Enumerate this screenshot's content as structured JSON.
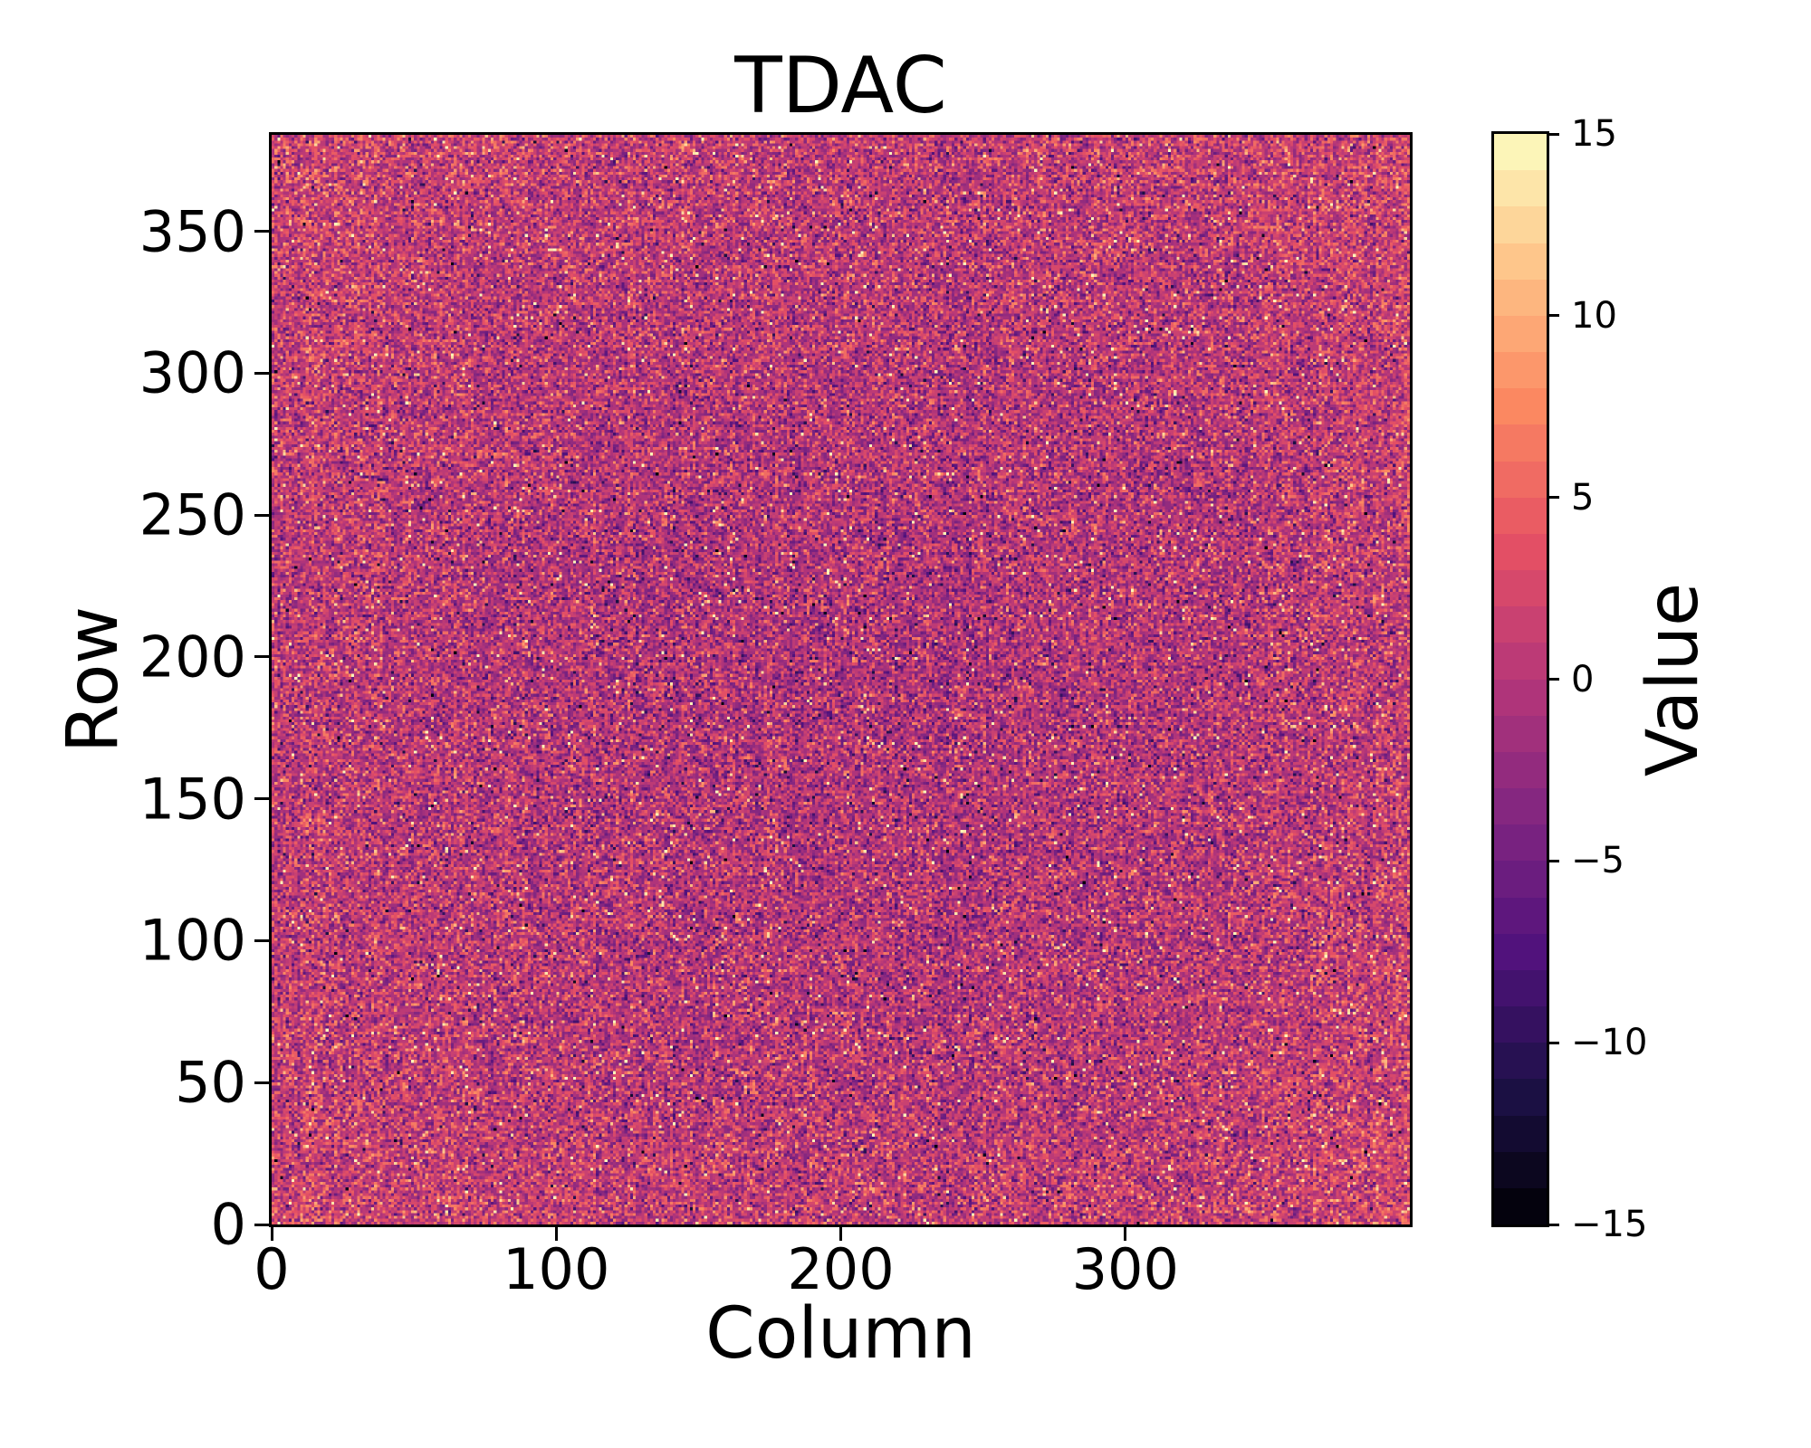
{
  "chart_data": {
    "type": "heatmap",
    "title": "TDAC",
    "xlabel": "Column",
    "ylabel": "Row",
    "colorbar_label": "Value",
    "n_cols": 400,
    "n_rows": 384,
    "xlim": [
      0,
      400
    ],
    "ylim": [
      0,
      384
    ],
    "x_ticks": [
      0,
      100,
      200,
      300
    ],
    "y_ticks": [
      0,
      50,
      100,
      150,
      200,
      250,
      300,
      350
    ],
    "vmin": -15,
    "vmax": 15,
    "colorbar_ticks": [
      15,
      10,
      5,
      0,
      -5,
      -10,
      -15
    ],
    "colorbar_n_bins": 30,
    "colormap": "magma",
    "colormap_anchors": [
      "#000004",
      "#1d1147",
      "#51127c",
      "#822681",
      "#b63679",
      "#e65164",
      "#fb8861",
      "#fec287",
      "#fcfdbf"
    ],
    "background_color": "#ffffff",
    "text_color": "#000000",
    "grid": false,
    "data_description": {
      "summary": "400x384 per-pixel TDAC map of integer noise centered near 0: dominated by magenta/purple cells (values about -5 to +3) with sparse bright orange/yellow outliers up to +15, rare dark cells down to -15, and slightly warmer (higher) values toward the plot edges and corners",
      "distribution": "gaussian-integer",
      "mean_center": -1.0,
      "mean_edge_boost": 1.3,
      "sigma": 3.6,
      "column_striping_sigma": 0.45,
      "bright_outlier_fraction": 0.015,
      "dark_outlier_fraction": 0.004,
      "seed": 42
    }
  }
}
